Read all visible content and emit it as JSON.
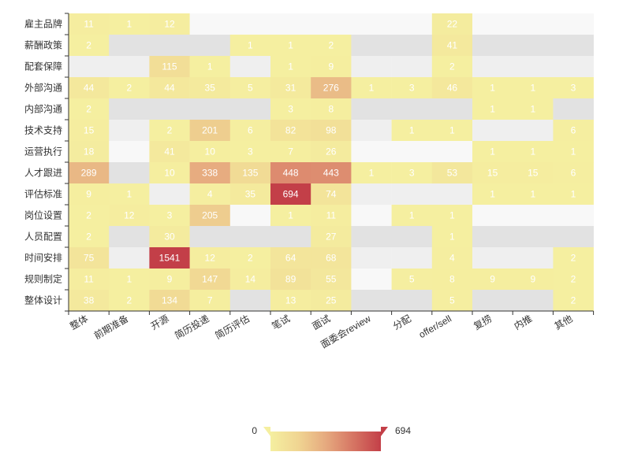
{
  "chart_data": {
    "type": "heatmap",
    "title": "",
    "xlabel": "",
    "ylabel": "",
    "x_categories": [
      "整体",
      "前期准备",
      "开源",
      "简历投递",
      "简历评估",
      "笔试",
      "面试",
      "面委会review",
      "分配",
      "offer/sell",
      "复捞",
      "内推",
      "其他"
    ],
    "y_categories": [
      "雇主品牌",
      "薪酬政策",
      "配套保障",
      "外部沟通",
      "内部沟通",
      "技术支持",
      "运营执行",
      "人才跟进",
      "评估标准",
      "岗位设置",
      "人员配置",
      "时间安排",
      "规则制定",
      "整体设计"
    ],
    "values": [
      [
        11,
        1,
        12,
        null,
        null,
        null,
        null,
        null,
        null,
        22,
        null,
        null,
        null
      ],
      [
        2,
        null,
        null,
        null,
        1,
        1,
        2,
        null,
        null,
        41,
        null,
        null,
        null
      ],
      [
        null,
        null,
        115,
        1,
        null,
        1,
        9,
        null,
        null,
        2,
        null,
        null,
        null
      ],
      [
        44,
        2,
        44,
        35,
        5,
        31,
        276,
        1,
        3,
        46,
        1,
        1,
        3
      ],
      [
        2,
        null,
        null,
        null,
        null,
        3,
        8,
        null,
        null,
        null,
        1,
        1,
        null
      ],
      [
        15,
        null,
        2,
        201,
        6,
        82,
        98,
        null,
        1,
        1,
        null,
        null,
        6
      ],
      [
        18,
        null,
        41,
        10,
        3,
        7,
        26,
        null,
        null,
        null,
        1,
        1,
        1
      ],
      [
        289,
        null,
        10,
        338,
        135,
        448,
        443,
        1,
        3,
        53,
        15,
        15,
        6
      ],
      [
        9,
        1,
        null,
        4,
        35,
        694,
        74,
        null,
        null,
        null,
        1,
        1,
        1
      ],
      [
        2,
        12,
        3,
        205,
        null,
        1,
        11,
        null,
        1,
        1,
        null,
        null,
        null
      ],
      [
        2,
        null,
        30,
        null,
        null,
        null,
        27,
        null,
        null,
        1,
        null,
        null,
        null
      ],
      [
        75,
        null,
        1541,
        12,
        2,
        64,
        68,
        null,
        null,
        4,
        null,
        null,
        2
      ],
      [
        11,
        1,
        9,
        147,
        14,
        89,
        55,
        null,
        5,
        8,
        9,
        9,
        2
      ],
      [
        38,
        2,
        134,
        7,
        null,
        13,
        25,
        null,
        null,
        5,
        null,
        null,
        2
      ]
    ],
    "visual_map": {
      "min": 0,
      "max": 694,
      "min_label": "0",
      "max_label": "694",
      "colors": [
        "#f5efa0",
        "#f0d592",
        "#e6aa7f",
        "#d67563",
        "#c33f48"
      ]
    },
    "empty_cell_colors": [
      "#f8f8f8",
      "#efefef",
      "#e2e2e2"
    ],
    "grid": false,
    "legend": "bottom-center"
  }
}
